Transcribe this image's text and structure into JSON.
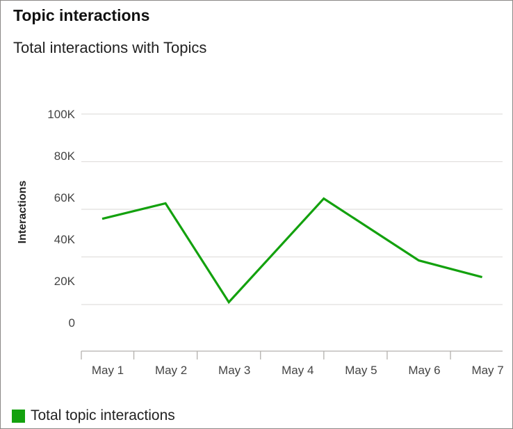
{
  "card": {
    "title": "Topic interactions",
    "subtitle": "Total interactions with Topics"
  },
  "chart_data": {
    "type": "line",
    "categories": [
      "May 1",
      "May 2",
      "May 3",
      "May 4",
      "May 5",
      "May 6",
      "May 7"
    ],
    "series": [
      {
        "name": "Total topic interactions",
        "color": "#13a10e",
        "points": [
          {
            "x": "May 1",
            "y": 56000
          },
          {
            "x": "May 2",
            "y": 62500
          },
          {
            "x": "May 3",
            "y": 21000
          },
          {
            "x": "May 4.5",
            "y": 64500
          },
          {
            "x": "May 6",
            "y": 38500
          },
          {
            "x": "May 7",
            "y": 31500
          }
        ]
      }
    ],
    "title": "Total interactions with Topics",
    "xlabel": "",
    "ylabel": "Interactions",
    "y_ticks": [
      "100K",
      "80K",
      "60K",
      "40K",
      "20K",
      "0"
    ],
    "ylim": [
      0,
      100000
    ],
    "grid": true,
    "legend_position": "bottom-left"
  }
}
